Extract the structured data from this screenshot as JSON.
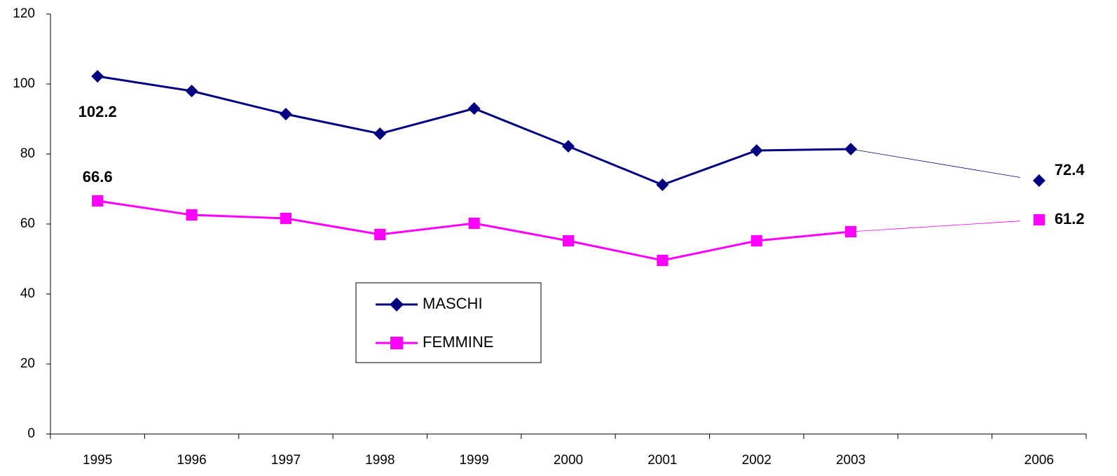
{
  "chart_data": {
    "type": "line",
    "categories": [
      "1995",
      "1996",
      "1997",
      "1998",
      "1999",
      "2000",
      "2001",
      "2002",
      "2003",
      null,
      "2006"
    ],
    "series": [
      {
        "name": "MASCHI",
        "color": "#000080",
        "marker": "diamond",
        "values": [
          102.2,
          98,
          91.4,
          85.8,
          93,
          82.2,
          71.2,
          81,
          81.4,
          null,
          72.4
        ],
        "value_labels": [
          "102.2",
          null,
          null,
          null,
          null,
          null,
          null,
          null,
          null,
          null,
          "72.4"
        ]
      },
      {
        "name": "FEMMINE",
        "color": "#FF00FF",
        "marker": "square",
        "values": [
          66.6,
          62.6,
          61.6,
          57,
          60.2,
          55.2,
          49.6,
          55.2,
          57.8,
          null,
          61.2
        ],
        "value_labels": [
          "66.6",
          null,
          null,
          null,
          null,
          null,
          null,
          null,
          null,
          null,
          "61.2"
        ]
      }
    ],
    "ylim": [
      0,
      120
    ],
    "yticks": [
      0,
      20,
      40,
      60,
      80,
      100,
      120
    ],
    "grid": false
  }
}
